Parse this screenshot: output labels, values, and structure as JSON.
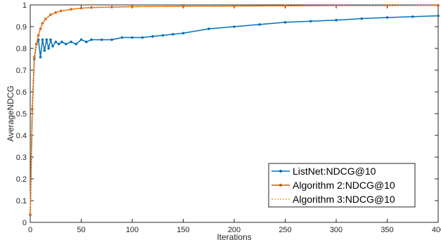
{
  "chart_data": {
    "type": "line",
    "title": "",
    "xlabel": "Iterations",
    "ylabel": "AverageNDCG",
    "xlim": [
      0,
      400
    ],
    "ylim": [
      0,
      1
    ],
    "grid": false,
    "legend_position": "bottom-right",
    "x_ticks": [
      "0",
      "50",
      "100",
      "150",
      "200",
      "250",
      "300",
      "350",
      "400"
    ],
    "y_ticks": [
      "0",
      "0.1",
      "0.2",
      "0.3",
      "0.4",
      "0.5",
      "0.6",
      "0.7",
      "0.8",
      "0.9",
      "1"
    ],
    "series": [
      {
        "name": "ListNet:NDCG@10",
        "color": "#0072BD",
        "style": "solid-dot-markers",
        "x": [
          0,
          2,
          4,
          6,
          8,
          10,
          12,
          14,
          16,
          18,
          20,
          22,
          25,
          28,
          31,
          35,
          40,
          45,
          50,
          55,
          60,
          70,
          80,
          90,
          100,
          110,
          120,
          130,
          140,
          150,
          175,
          200,
          225,
          250,
          275,
          300,
          325,
          350,
          375,
          400
        ],
        "y": [
          0.035,
          0.52,
          0.75,
          0.82,
          0.84,
          0.76,
          0.84,
          0.79,
          0.84,
          0.8,
          0.84,
          0.81,
          0.83,
          0.82,
          0.83,
          0.82,
          0.83,
          0.82,
          0.84,
          0.83,
          0.84,
          0.84,
          0.84,
          0.85,
          0.85,
          0.85,
          0.855,
          0.86,
          0.865,
          0.87,
          0.89,
          0.9,
          0.91,
          0.92,
          0.925,
          0.93,
          0.937,
          0.942,
          0.946,
          0.95
        ]
      },
      {
        "name": "Algorithm 2:NDCG@10",
        "color": "#D95319",
        "style": "solid-dot-markers",
        "x": [
          0,
          2,
          4,
          6,
          8,
          10,
          12,
          15,
          20,
          25,
          30,
          40,
          50,
          60,
          80,
          100,
          150,
          200,
          250,
          300,
          350,
          400
        ],
        "y": [
          0.035,
          0.52,
          0.76,
          0.82,
          0.86,
          0.89,
          0.915,
          0.935,
          0.955,
          0.965,
          0.972,
          0.98,
          0.985,
          0.988,
          0.99,
          0.992,
          0.994,
          0.995,
          0.996,
          0.997,
          0.997,
          0.998
        ]
      },
      {
        "name": "Algorithm 3:NDCG@10",
        "color": "#EDB120",
        "style": "dotted",
        "x": [
          0,
          2,
          4,
          6,
          8,
          10,
          12,
          15,
          20,
          25,
          30,
          40,
          50,
          60,
          80,
          100,
          150,
          200,
          250,
          300,
          350,
          400
        ],
        "y": [
          0.035,
          0.52,
          0.76,
          0.82,
          0.86,
          0.89,
          0.915,
          0.935,
          0.955,
          0.965,
          0.972,
          0.98,
          0.985,
          0.988,
          0.99,
          0.992,
          0.994,
          0.995,
          0.996,
          0.997,
          0.997,
          0.998
        ]
      }
    ]
  }
}
